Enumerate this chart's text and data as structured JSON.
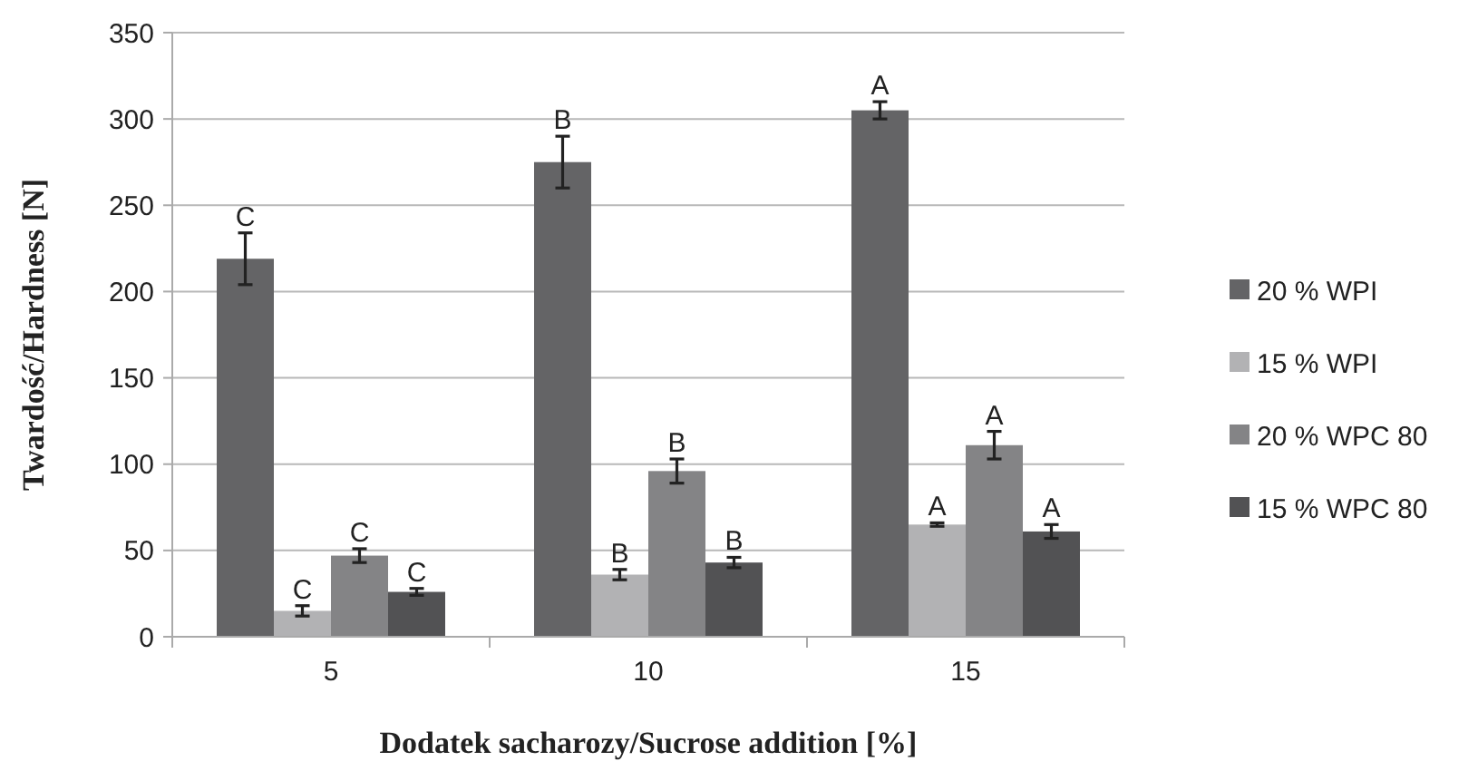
{
  "chart_data": {
    "type": "bar",
    "xlabel": "Dodatek sacharozy/Sucrose addition [%]",
    "ylabel": "Twardość/Hardness [N]",
    "categories": [
      "5",
      "10",
      "15"
    ],
    "series": [
      {
        "name": "20 % WPI",
        "color": "#646466",
        "values": [
          219,
          275,
          305
        ],
        "errors": [
          15,
          15,
          5
        ],
        "value_labels": [
          "C",
          "B",
          "A"
        ]
      },
      {
        "name": "15 % WPI",
        "color": "#b2b2b4",
        "values": [
          15,
          36,
          65
        ],
        "errors": [
          3,
          3,
          1
        ],
        "value_labels": [
          "C",
          "B",
          "A"
        ]
      },
      {
        "name": "20 % WPC 80",
        "color": "#848486",
        "values": [
          47,
          96,
          111
        ],
        "errors": [
          4,
          7,
          8
        ],
        "value_labels": [
          "C",
          "B",
          "A"
        ]
      },
      {
        "name": "15 % WPC 80",
        "color": "#525254",
        "values": [
          26,
          43,
          61
        ],
        "errors": [
          2,
          3,
          4
        ],
        "value_labels": [
          "C",
          "B",
          "A"
        ]
      }
    ],
    "ylim": [
      0,
      350
    ],
    "yticks": [
      0,
      50,
      100,
      150,
      200,
      250,
      300,
      350
    ],
    "grid": "y",
    "legend": "right"
  }
}
